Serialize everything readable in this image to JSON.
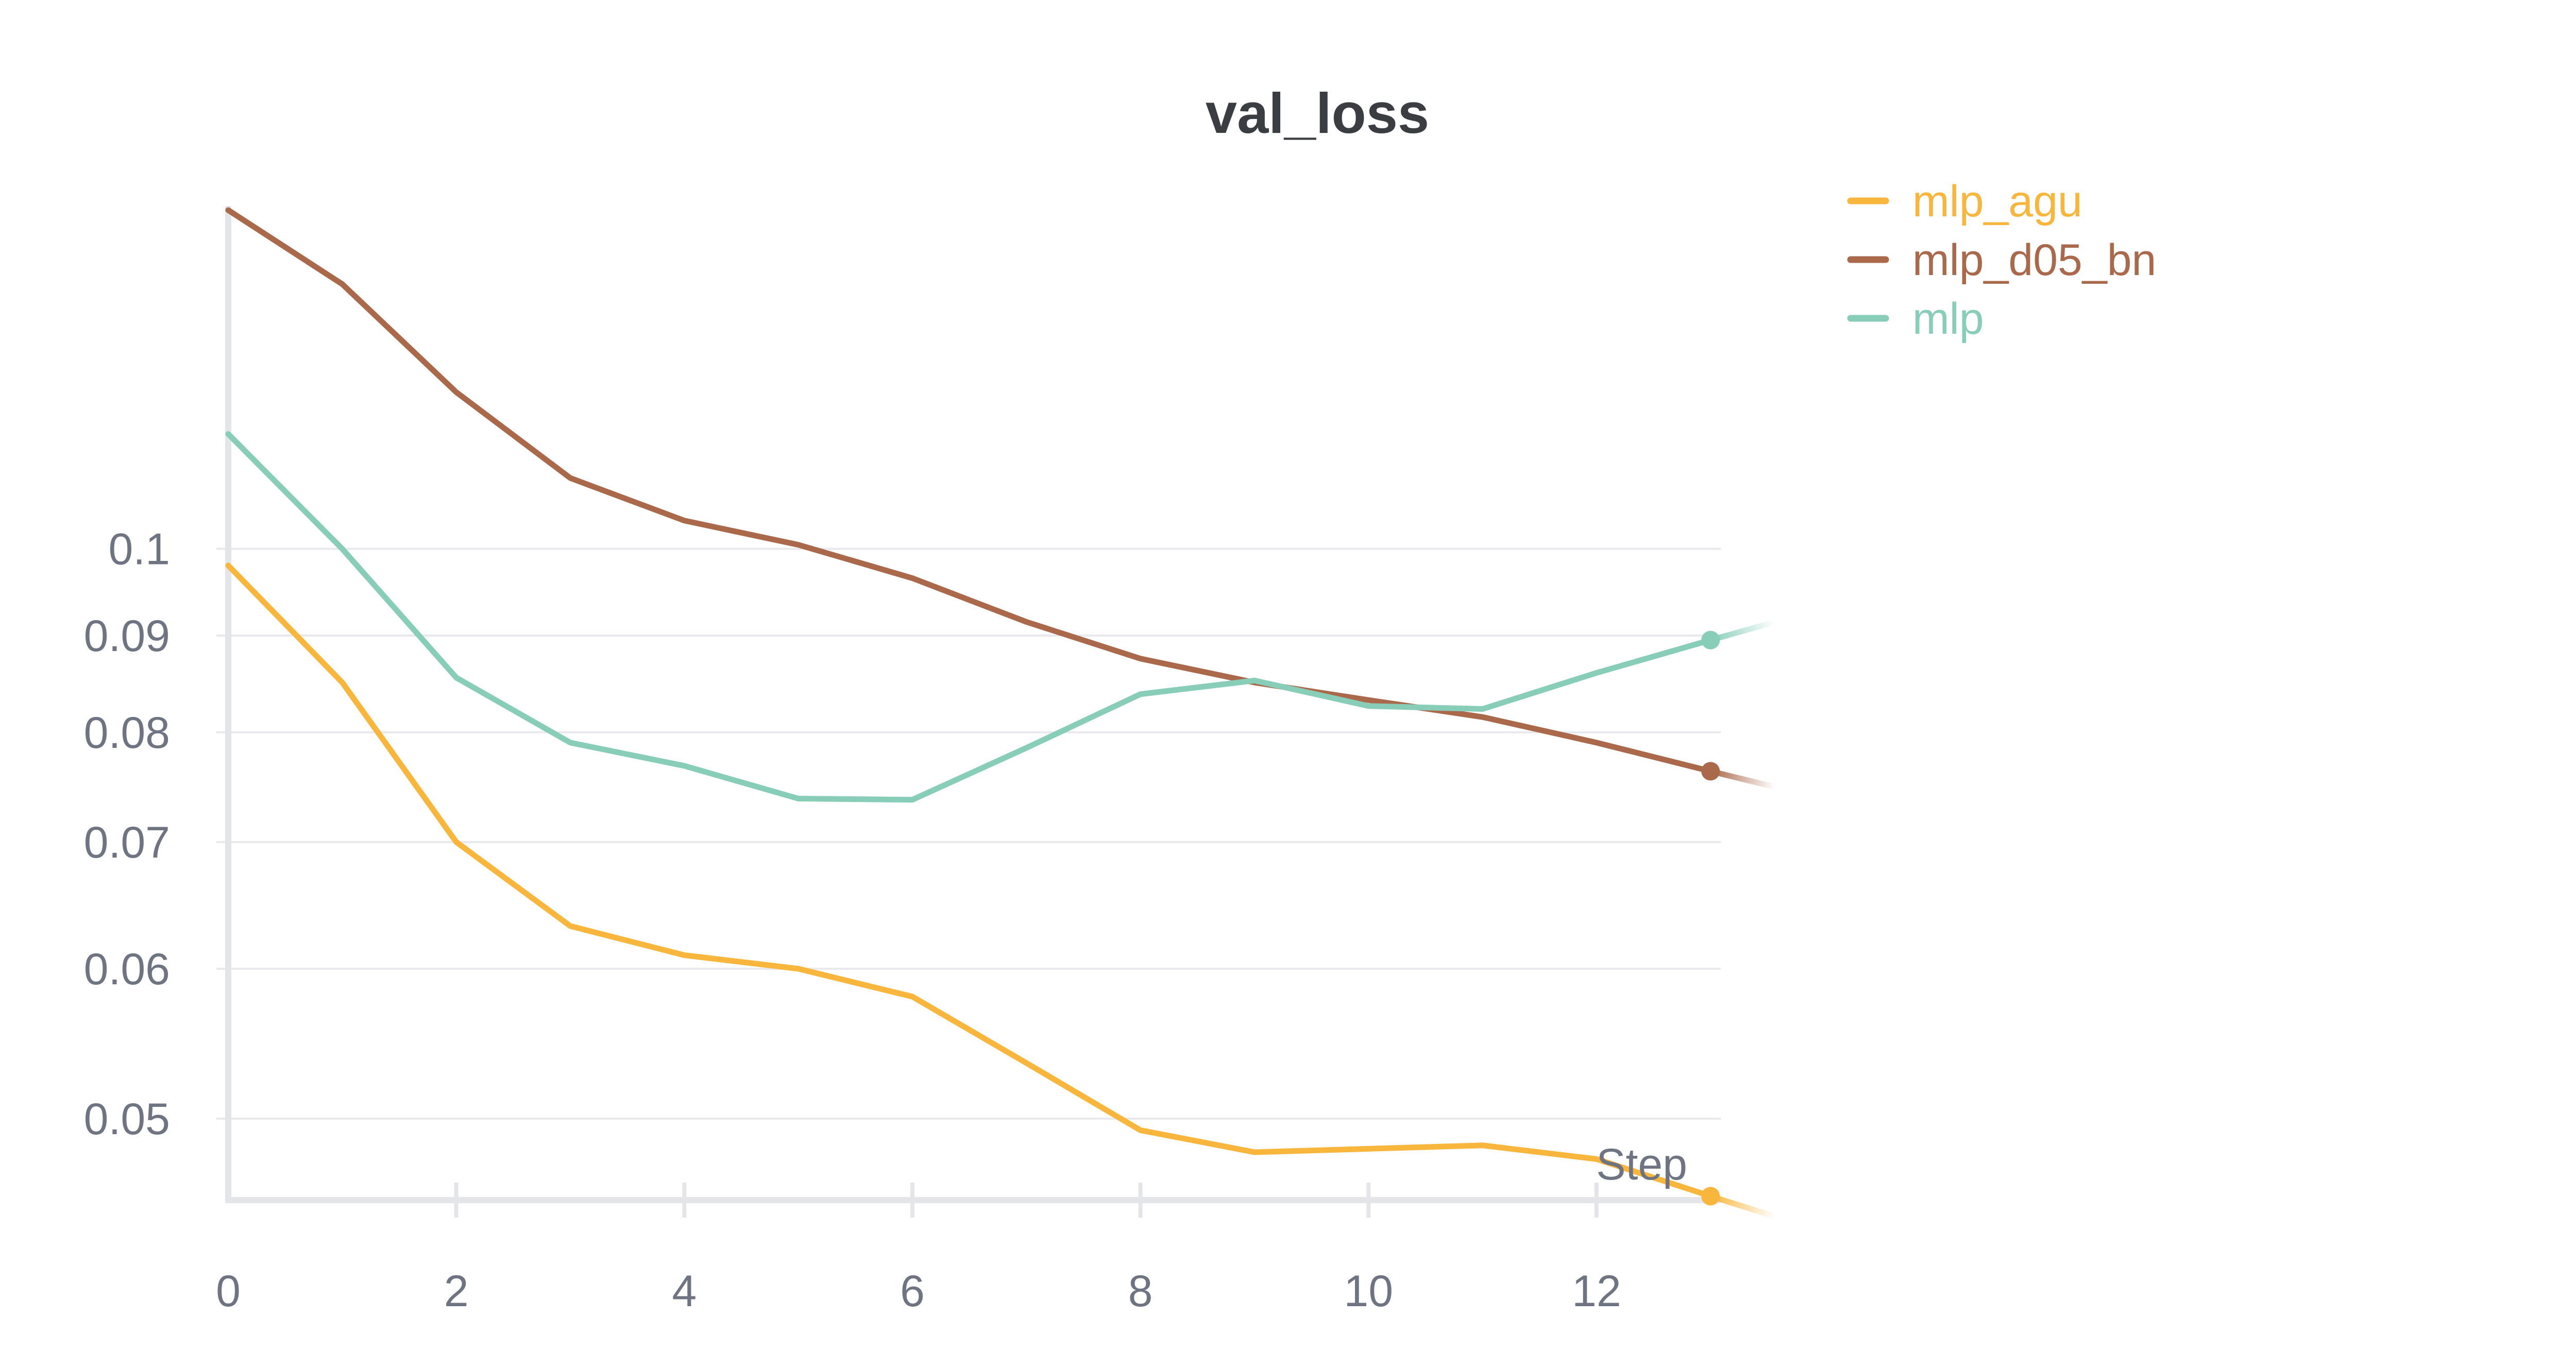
{
  "chart_data": {
    "type": "line",
    "title": "val_loss",
    "xlabel": "Step",
    "ylabel": "",
    "y_scale": "log",
    "xlim": [
      0,
      13.6
    ],
    "ylim": [
      0.045,
      0.151
    ],
    "x_ticks": [
      0,
      2,
      4,
      6,
      8,
      10,
      12
    ],
    "x_tick_labels": [
      "0",
      "2",
      "4",
      "6",
      "8",
      "10",
      "12"
    ],
    "y_ticks": [
      0.05,
      0.06,
      0.07,
      0.08,
      0.09,
      0.1
    ],
    "y_tick_labels": [
      "0.05",
      "0.06",
      "0.07",
      "0.08",
      "0.09",
      "0.1"
    ],
    "grid": true,
    "legend_position": "top-right",
    "x": [
      0,
      1,
      2,
      3,
      4,
      5,
      6,
      7,
      8,
      9,
      10,
      11,
      12,
      13
    ],
    "series": [
      {
        "name": "mlp_agu",
        "color": "#f9b63c",
        "values": [
          0.098,
          0.085,
          0.07,
          0.0632,
          0.061,
          0.06,
          0.058,
          0.0535,
          0.0493,
          0.048,
          0.0482,
          0.0484,
          0.0476,
          0.0455
        ]
      },
      {
        "name": "mlp_d05_bn",
        "color": "#a9694a",
        "values": [
          0.151,
          0.138,
          0.121,
          0.109,
          0.1035,
          0.1005,
          0.0965,
          0.0915,
          0.0875,
          0.085,
          0.0832,
          0.0815,
          0.079,
          0.0763
        ]
      },
      {
        "name": "mlp",
        "color": "#87cdb8",
        "values": [
          0.115,
          0.1,
          0.0855,
          0.079,
          0.0768,
          0.0738,
          0.0737,
          0.0785,
          0.0838,
          0.0852,
          0.0826,
          0.0823,
          0.086,
          0.0895
        ]
      }
    ]
  }
}
